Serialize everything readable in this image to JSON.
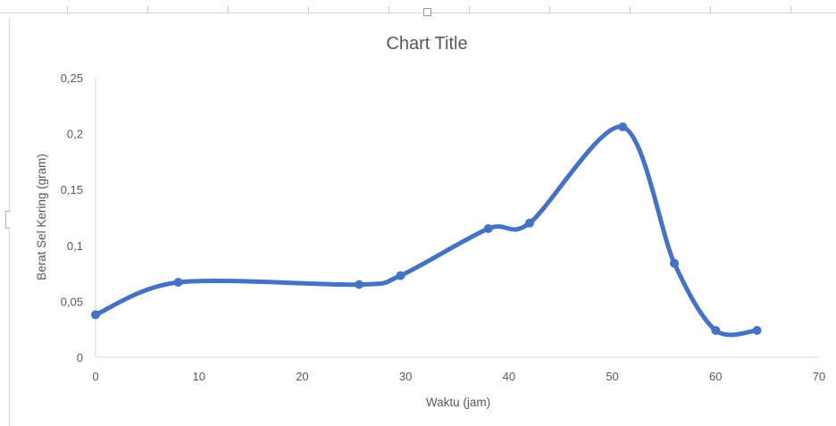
{
  "chart_data": {
    "type": "scatter",
    "title": "Chart Title",
    "xlabel": "Waktu (jam)",
    "ylabel": "Berat Sel Kering (gram)",
    "xlim": [
      0,
      70
    ],
    "ylim": [
      0,
      0.25
    ],
    "x_ticks": [
      0,
      10,
      20,
      30,
      40,
      50,
      60,
      70
    ],
    "x_tick_labels": [
      "0",
      "10",
      "20",
      "30",
      "40",
      "50",
      "60",
      "70"
    ],
    "y_ticks": [
      0,
      0.05,
      0.1,
      0.15,
      0.2,
      0.25
    ],
    "y_tick_labels": [
      "0",
      "0,05",
      "0,1",
      "0,15",
      "0,2",
      "0,25"
    ],
    "grid": false,
    "legend": "none",
    "series": [
      {
        "color": "#4472c4",
        "style": "smooth-lines-with-markers",
        "x": [
          0,
          8,
          25.5,
          29.5,
          38,
          42,
          51,
          56,
          60,
          64
        ],
        "y": [
          0.038,
          0.067,
          0.065,
          0.073,
          0.115,
          0.12,
          0.206,
          0.084,
          0.024,
          0.024
        ]
      }
    ]
  },
  "colors": {
    "series": "#4472c4",
    "axis": "#d9d9d9",
    "text": "#595959"
  }
}
